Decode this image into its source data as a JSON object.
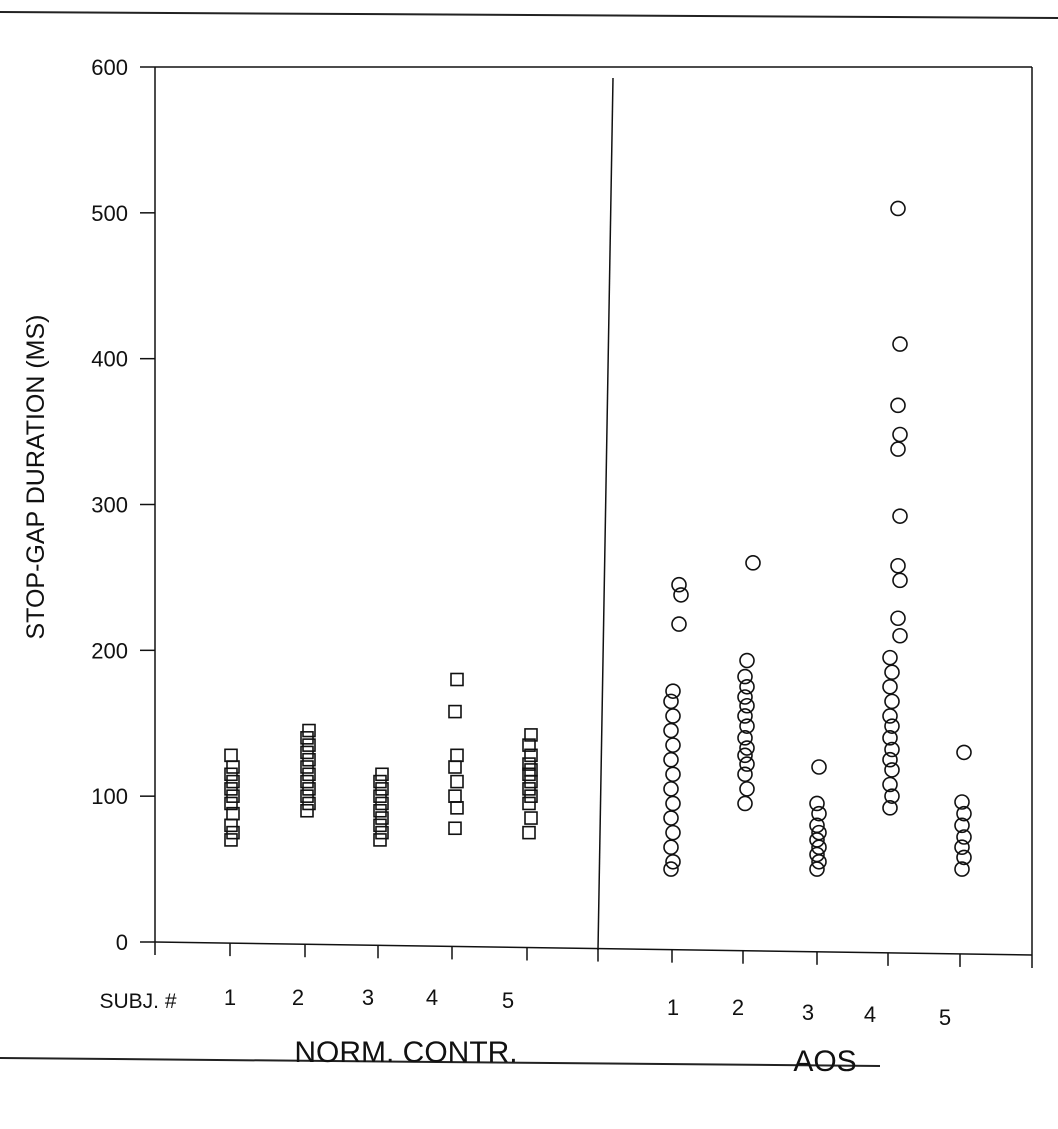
{
  "chart_data": {
    "type": "scatter",
    "title": "",
    "ylabel": "STOP-GAP DURATION (MS)",
    "ylim": [
      0,
      600
    ],
    "y_ticks": [
      "0",
      "100",
      "200",
      "300",
      "400",
      "500",
      "600"
    ],
    "x_prefix_label": "SUBJ. #",
    "grid": false,
    "legend": "none",
    "groups": [
      {
        "name": "NORM. CONTR.",
        "marker": "square",
        "subjects": [
          {
            "label": "1",
            "values": [
              70,
              75,
              80,
              88,
              95,
              100,
              105,
              110,
              115,
              120,
              128
            ]
          },
          {
            "label": "2",
            "values": [
              90,
              95,
              100,
              105,
              110,
              115,
              120,
              125,
              130,
              135,
              140,
              145
            ]
          },
          {
            "label": "3",
            "values": [
              70,
              75,
              80,
              85,
              90,
              95,
              100,
              105,
              110,
              115
            ]
          },
          {
            "label": "4",
            "values": [
              78,
              92,
              100,
              110,
              120,
              128,
              158,
              180
            ]
          },
          {
            "label": "5",
            "values": [
              75,
              85,
              95,
              100,
              105,
              110,
              115,
              118,
              122,
              128,
              135,
              142
            ]
          }
        ]
      },
      {
        "name": "AOS",
        "marker": "circle",
        "subjects": [
          {
            "label": "1",
            "values": [
              50,
              55,
              65,
              75,
              85,
              95,
              105,
              115,
              125,
              135,
              145,
              155,
              165,
              172,
              218,
              238,
              245
            ]
          },
          {
            "label": "2",
            "values": [
              95,
              105,
              115,
              122,
              128,
              133,
              140,
              148,
              155,
              162,
              168,
              175,
              182,
              193,
              260
            ]
          },
          {
            "label": "3",
            "values": [
              50,
              55,
              60,
              65,
              70,
              75,
              80,
              88,
              95,
              120
            ]
          },
          {
            "label": "4",
            "values": [
              92,
              100,
              108,
              118,
              125,
              132,
              140,
              148,
              155,
              165,
              175,
              185,
              195,
              210,
              222,
              248,
              258,
              292,
              338,
              348,
              368,
              410,
              503
            ]
          },
          {
            "label": "5",
            "values": [
              50,
              58,
              65,
              72,
              80,
              88,
              96,
              130
            ]
          }
        ]
      }
    ]
  }
}
